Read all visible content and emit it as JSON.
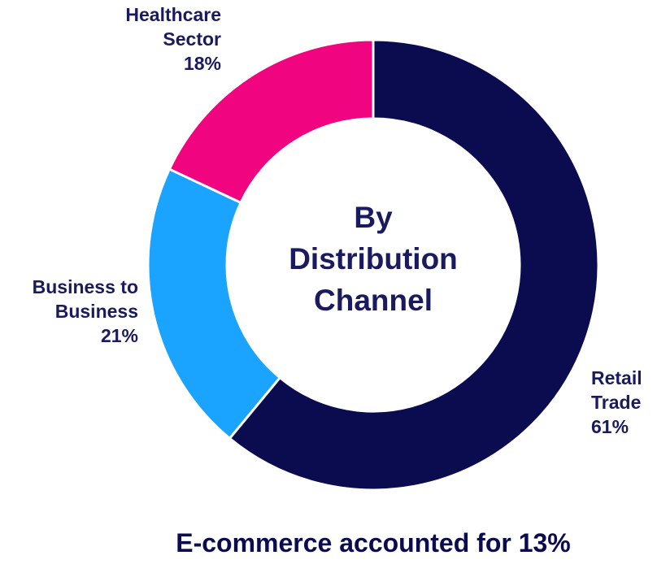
{
  "chart_data": {
    "type": "donut",
    "title": "By Distribution Channel",
    "annotation": "E-commerce accounted for 13%",
    "categories": [
      "Retail Trade",
      "Business to Business",
      "Healthcare Sector"
    ],
    "values": [
      61,
      21,
      18
    ],
    "value_labels": [
      "61%",
      "21%",
      "18%"
    ],
    "colors": [
      "#0b0b4f",
      "#1aa3ff",
      "#f0047f"
    ]
  }
}
